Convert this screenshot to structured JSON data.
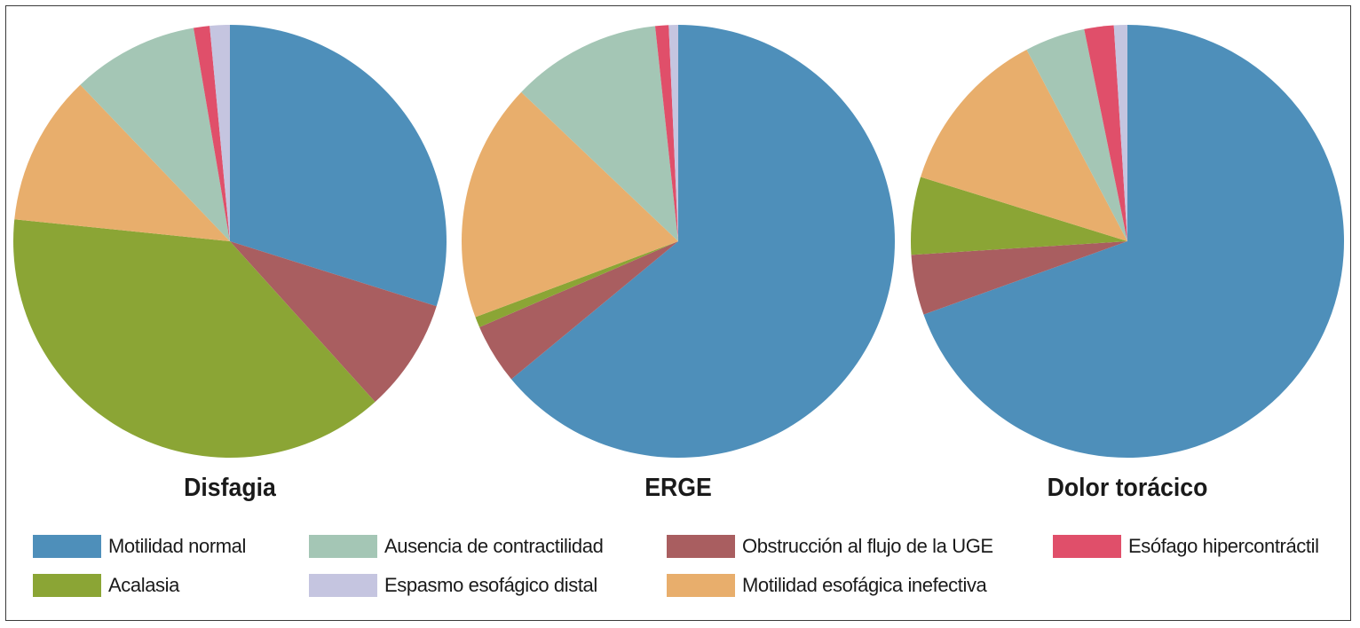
{
  "chart_data": [
    {
      "type": "pie",
      "title": "Disfagia",
      "slices": [
        {
          "label": "Motilidad normal",
          "value": 30.0
        },
        {
          "label": "Obstrucción al flujo de la UGE",
          "value": 8.5
        },
        {
          "label": "Acalasia",
          "value": 38.5
        },
        {
          "label": "Motilidad esofágica inefectiva",
          "value": 11.3
        },
        {
          "label": "Ausencia de contractilidad",
          "value": 9.5
        },
        {
          "label": "Esófago hipercontráctil",
          "value": 1.2
        },
        {
          "label": "Espasmo esofágico distal",
          "value": 1.5
        }
      ]
    },
    {
      "type": "pie",
      "title": "ERGE",
      "slices": [
        {
          "label": "Motilidad normal",
          "value": 64.0
        },
        {
          "label": "Obstrucción al flujo de la UGE",
          "value": 4.5
        },
        {
          "label": "Acalasia",
          "value": 0.8
        },
        {
          "label": "Motilidad esofágica inefectiva",
          "value": 17.8
        },
        {
          "label": "Ausencia de contractilidad",
          "value": 11.2
        },
        {
          "label": "Esófago hipercontráctil",
          "value": 1.0
        },
        {
          "label": "Espasmo esofágico distal",
          "value": 0.7
        }
      ]
    },
    {
      "type": "pie",
      "title": "Dolor torácico",
      "slices": [
        {
          "label": "Motilidad normal",
          "value": 69.5
        },
        {
          "label": "Obstrucción al flujo de la UGE",
          "value": 4.5
        },
        {
          "label": "Acalasia",
          "value": 5.8
        },
        {
          "label": "Motilidad esofágica inefectiva",
          "value": 12.5
        },
        {
          "label": "Ausencia de contractilidad",
          "value": 4.5
        },
        {
          "label": "Esófago hipercontráctil",
          "value": 2.2
        },
        {
          "label": "Espasmo esofágico distal",
          "value": 1.0
        }
      ]
    }
  ],
  "legend": {
    "placement": "bottom",
    "items": [
      {
        "label": "Motilidad normal",
        "color": "#4e8fba"
      },
      {
        "label": "Ausencia de contractilidad",
        "color": "#a4c6b5"
      },
      {
        "label": "Obstrucción al flujo de la UGE",
        "color": "#a95e60"
      },
      {
        "label": "Esófago hipercontráctil",
        "color": "#e04f6a"
      },
      {
        "label": "Acalasia",
        "color": "#8ba535"
      },
      {
        "label": "Espasmo esofágico distal",
        "color": "#c5c5e0"
      },
      {
        "label": "Motilidad esofágica inefectiva",
        "color": "#e8ae6c"
      }
    ]
  }
}
